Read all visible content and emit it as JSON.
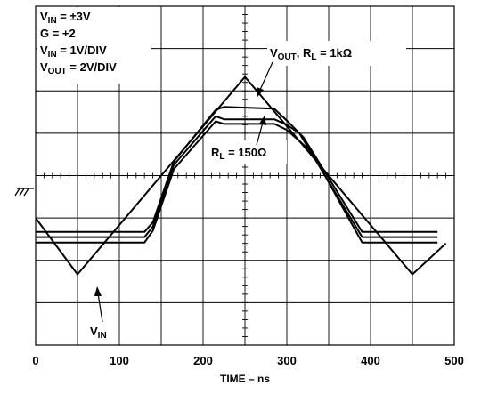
{
  "chart_data": {
    "type": "line",
    "xlabel": "TIME – ns",
    "x_ticks": [
      0,
      100,
      200,
      300,
      400,
      500
    ],
    "xlim": [
      0,
      500
    ],
    "ylim": [
      -4,
      4
    ],
    "grid": true,
    "annotations": {
      "line1": {
        "main": "V",
        "sub": "IN",
        "rest": " = ±3V"
      },
      "line2": {
        "main": "G = +2"
      },
      "line3": {
        "main": "V",
        "sub": "IN",
        "rest": " = 1V/DIV"
      },
      "line4": {
        "main": "V",
        "sub": "OUT",
        "rest": " = 2V/DIV"
      },
      "vout_label": {
        "main": "V",
        "sub": "OUT",
        "mid": ", R",
        "sub2": "L",
        "rest": " = 1kΩ"
      },
      "rl150_label": {
        "main": "R",
        "sub": "L",
        "rest": " = 150Ω"
      },
      "vin_label": {
        "main": "V",
        "sub": "IN"
      }
    },
    "series": [
      {
        "x": [
          0,
          50,
          250,
          450,
          490
        ],
        "y": [
          -1,
          -2.33,
          2.33,
          -2.33,
          -1.6
        ]
      },
      {
        "x": [
          0,
          130,
          140,
          165,
          215,
          225,
          285,
          300,
          320,
          390,
          480
        ],
        "y": [
          -1.33,
          -1.33,
          -1.1,
          0.33,
          1.55,
          1.62,
          1.58,
          1.3,
          0.9,
          -1.33,
          -1.33
        ]
      },
      {
        "x": [
          0,
          130,
          140,
          165,
          215,
          225,
          285,
          300,
          315,
          390,
          480
        ],
        "y": [
          -1.45,
          -1.45,
          -1.2,
          0.25,
          1.4,
          1.33,
          1.33,
          1.2,
          1.0,
          -1.45,
          -1.45
        ]
      },
      {
        "x": [
          0,
          130,
          140,
          165,
          215,
          225,
          285,
          300,
          330,
          390,
          480
        ],
        "y": [
          -1.58,
          -1.58,
          -1.3,
          0.15,
          1.28,
          1.22,
          1.22,
          1.08,
          0.55,
          -1.58,
          -1.58
        ]
      }
    ]
  }
}
